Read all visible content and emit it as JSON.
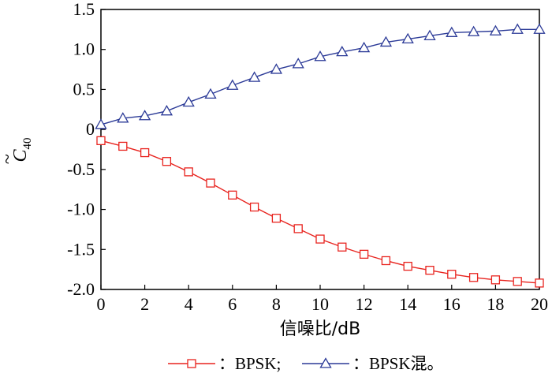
{
  "chart_data": {
    "type": "line",
    "xlabel": "信噪比/dB",
    "ylabel": "C",
    "ylabel_subscript": "40",
    "ylabel_accent": "~",
    "xlim": [
      0,
      20
    ],
    "ylim": [
      -2.0,
      1.5
    ],
    "x_ticks": [
      "0",
      "2",
      "4",
      "6",
      "8",
      "10",
      "12",
      "14",
      "16",
      "18",
      "20"
    ],
    "y_ticks": [
      "1.5",
      "1.0",
      "0.5",
      "0",
      "-0.5",
      "-1.0",
      "-1.5",
      "-2.0"
    ],
    "x": [
      0,
      1,
      2,
      3,
      4,
      5,
      6,
      7,
      8,
      9,
      10,
      11,
      12,
      13,
      14,
      15,
      16,
      17,
      18,
      19,
      20
    ],
    "series": [
      {
        "name": "BPSK",
        "legend_label": "：BPSK;",
        "color": "#e8231e",
        "marker": "square",
        "values": [
          -0.14,
          -0.21,
          -0.29,
          -0.4,
          -0.53,
          -0.67,
          -0.82,
          -0.97,
          -1.11,
          -1.24,
          -1.37,
          -1.47,
          -1.56,
          -1.64,
          -1.71,
          -1.76,
          -1.81,
          -1.85,
          -1.88,
          -1.9,
          -1.92
        ]
      },
      {
        "name": "BPSK混。",
        "legend_label": "：BPSK混。",
        "color": "#2b3a97",
        "marker": "triangle",
        "values": [
          0.06,
          0.14,
          0.17,
          0.23,
          0.34,
          0.44,
          0.55,
          0.65,
          0.75,
          0.82,
          0.91,
          0.97,
          1.02,
          1.09,
          1.13,
          1.17,
          1.21,
          1.22,
          1.23,
          1.25,
          1.25
        ]
      }
    ],
    "grid": false,
    "legend_position": "bottom"
  }
}
